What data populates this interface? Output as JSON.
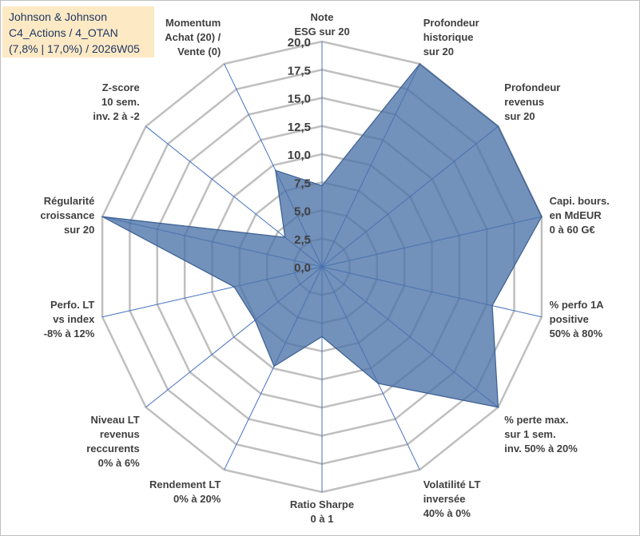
{
  "header": {
    "company": "Johnson & Johnson",
    "portfolio": "C4_Actions / 4_OTAN",
    "stats": "(7,8% | 17,0%) / 2026W05"
  },
  "chart_data": {
    "type": "radar",
    "title": "Johnson & Johnson",
    "rmin": 0,
    "rmax": 20,
    "step": 2.5,
    "tick_labels": [
      "0,0",
      "2,5",
      "5,0",
      "7,5",
      "10,0",
      "12,5",
      "15,0",
      "17,5",
      "20,0"
    ],
    "categories": [
      [
        "Note",
        "ESG sur 20"
      ],
      [
        "Profondeur",
        "historique",
        "sur 20"
      ],
      [
        "Profondeur",
        "revenus",
        "sur 20"
      ],
      [
        "Capi. bours.",
        "en MdEUR",
        "0 à 60 G€"
      ],
      [
        "% perfo 1A",
        "positive",
        "50% à 80%"
      ],
      [
        "% perte max.",
        "sur 1 sem.",
        "inv. 50% à 20%"
      ],
      [
        "Volatilité LT",
        "inversée",
        "40% à 0%"
      ],
      [
        "Ratio Sharpe",
        "0 à 1"
      ],
      [
        "Rendement LT",
        "0% à 20%"
      ],
      [
        "Niveau LT",
        "revenus",
        "reccurents",
        "0% à 6%"
      ],
      [
        "Perfo. LT",
        "vs index",
        "-8% à 12%"
      ],
      [
        "Régularité",
        "croissance",
        "sur 20"
      ],
      [
        "Z-score",
        "10 sem.",
        "inv. 2 à -2"
      ],
      [
        "Momentum",
        "Achat (20) /",
        "Vente (0)"
      ]
    ],
    "series": [
      {
        "name": "Johnson & Johnson",
        "color": "#4a72a8",
        "values": [
          7.2,
          20.0,
          20.0,
          20.0,
          15.5,
          20.0,
          11.5,
          6.2,
          9.8,
          7.6,
          8.0,
          20.0,
          4.2,
          9.5
        ]
      }
    ],
    "grid": true
  }
}
